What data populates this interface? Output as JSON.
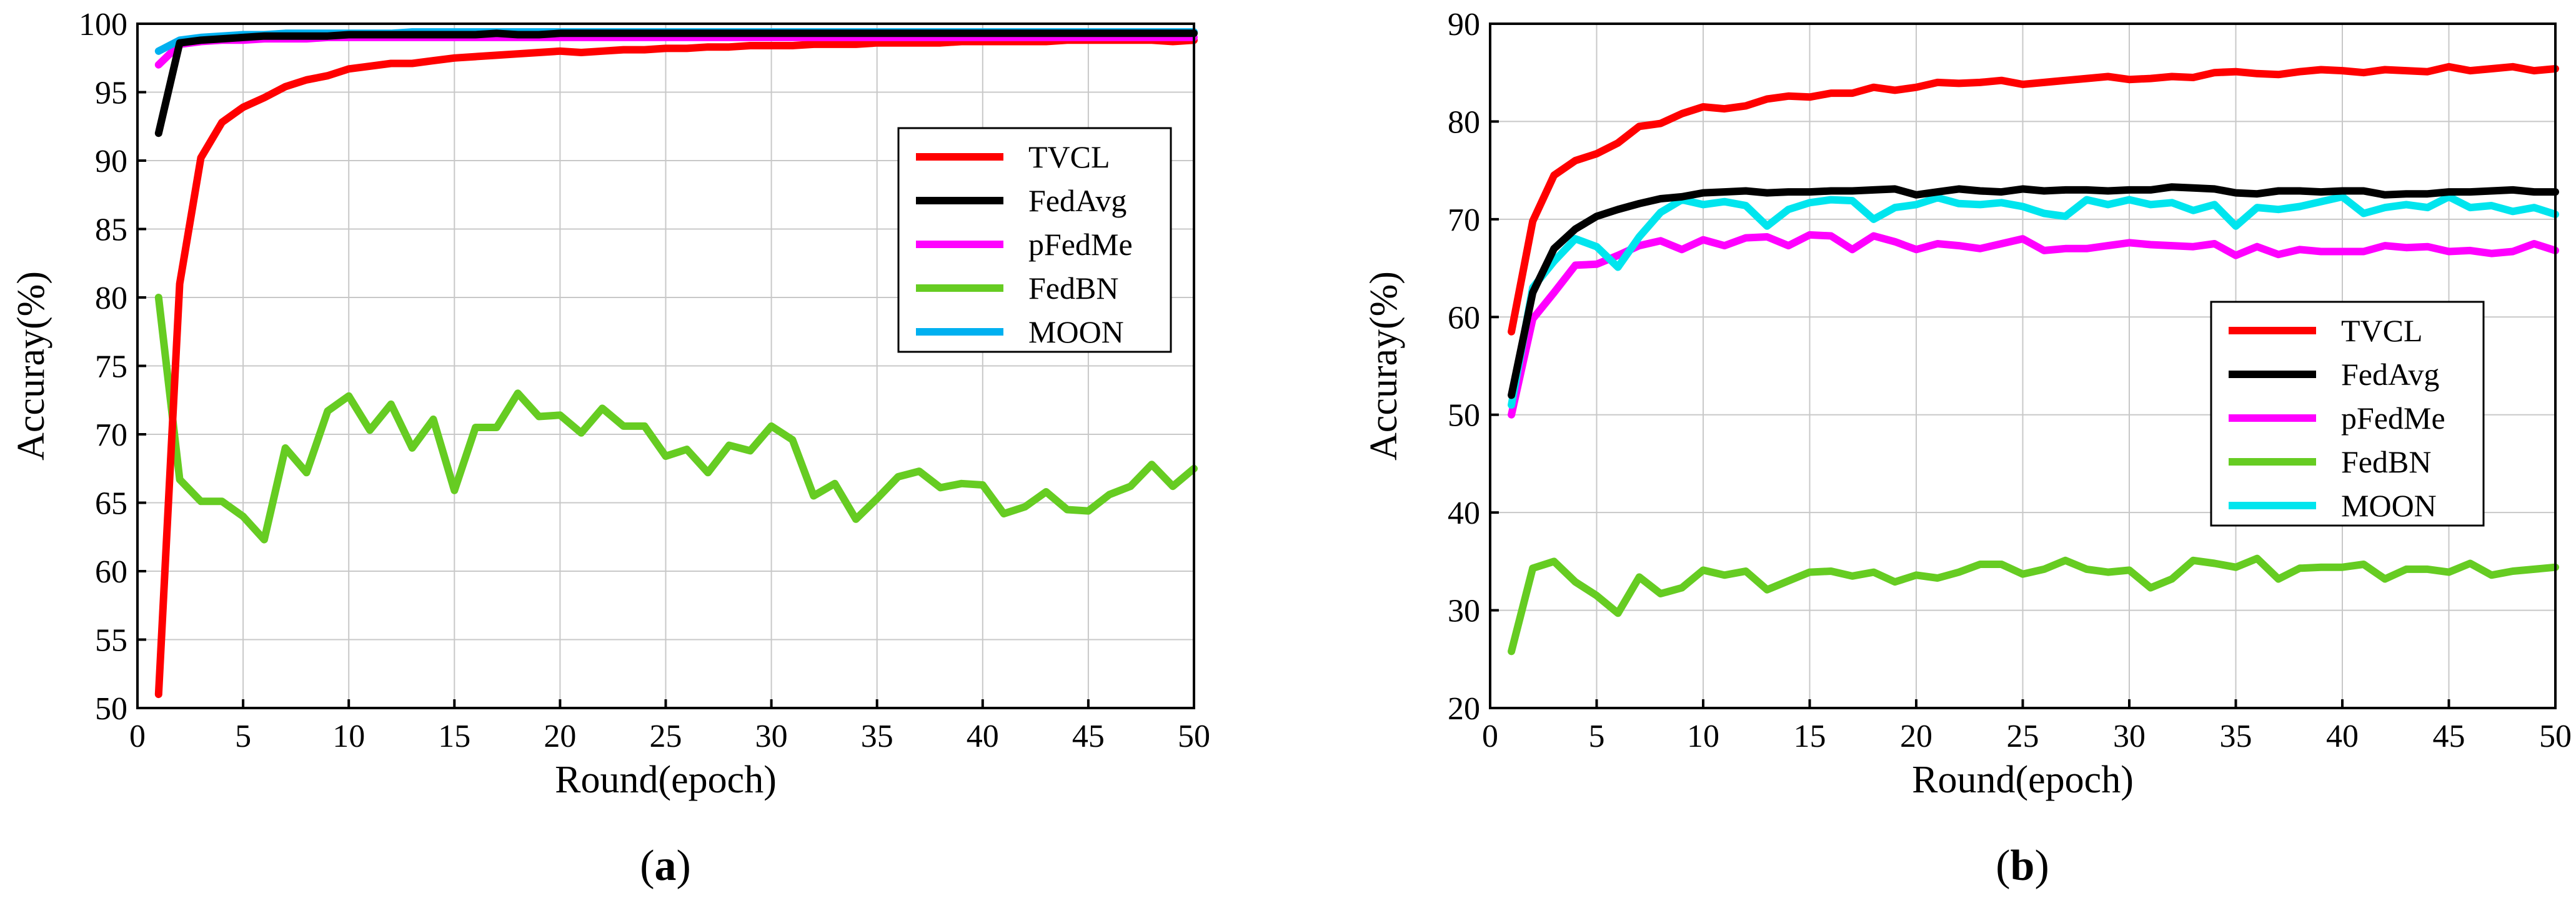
{
  "chart_data": [
    {
      "id": "a",
      "type": "line",
      "caption_open": "(",
      "caption": "a",
      "caption_close": ")",
      "xlabel": "Round(epoch)",
      "ylabel": "Accuray(%)",
      "xlim": [
        0,
        50
      ],
      "ylim": [
        50,
        100
      ],
      "xticks": [
        0,
        5,
        10,
        15,
        20,
        25,
        30,
        35,
        40,
        45,
        50
      ],
      "yticks": [
        50,
        55,
        60,
        65,
        70,
        75,
        80,
        85,
        90,
        95,
        100
      ],
      "grid": true,
      "legend_position": "center-right",
      "x": [
        1,
        2,
        3,
        4,
        5,
        6,
        7,
        8,
        9,
        10,
        11,
        12,
        13,
        14,
        15,
        16,
        17,
        18,
        19,
        20,
        21,
        22,
        23,
        24,
        25,
        26,
        27,
        28,
        29,
        30,
        31,
        32,
        33,
        34,
        35,
        36,
        37,
        38,
        39,
        40,
        41,
        42,
        43,
        44,
        45,
        46,
        47,
        48,
        49,
        50
      ],
      "series": [
        {
          "name": "TVCL",
          "color": "#ff0000",
          "values": [
            51,
            81,
            90.2,
            92.8,
            93.9,
            94.6,
            95.4,
            95.9,
            96.2,
            96.7,
            96.9,
            97.1,
            97.1,
            97.3,
            97.5,
            97.6,
            97.7,
            97.8,
            97.9,
            98.0,
            97.9,
            98.0,
            98.1,
            98.1,
            98.2,
            98.2,
            98.3,
            98.3,
            98.4,
            98.4,
            98.4,
            98.5,
            98.5,
            98.5,
            98.6,
            98.6,
            98.6,
            98.6,
            98.7,
            98.7,
            98.7,
            98.7,
            98.7,
            98.8,
            98.8,
            98.8,
            98.8,
            98.8,
            98.7,
            98.8
          ]
        },
        {
          "name": "FedAvg",
          "color": "#000000",
          "values": [
            92,
            98.6,
            98.8,
            98.9,
            99.0,
            99.1,
            99.1,
            99.1,
            99.1,
            99.2,
            99.2,
            99.2,
            99.2,
            99.2,
            99.2,
            99.2,
            99.3,
            99.2,
            99.2,
            99.3,
            99.3,
            99.3,
            99.3,
            99.3,
            99.3,
            99.3,
            99.3,
            99.3,
            99.3,
            99.3,
            99.3,
            99.3,
            99.3,
            99.3,
            99.3,
            99.3,
            99.3,
            99.3,
            99.3,
            99.3,
            99.3,
            99.3,
            99.3,
            99.3,
            99.3,
            99.3,
            99.3,
            99.3,
            99.3,
            99.3
          ]
        },
        {
          "name": "pFedMe",
          "color": "#ff00ff",
          "values": [
            97,
            98.5,
            98.7,
            98.8,
            98.8,
            98.9,
            98.9,
            98.9,
            99.0,
            99.0,
            99.0,
            99.0,
            99.0,
            99.0,
            99.0,
            99.0,
            99.0,
            99.0,
            99.0,
            99.0,
            99.0,
            99.0,
            99.0,
            99.0,
            99.0,
            99.0,
            99.0,
            99.0,
            99.0,
            99.0,
            99.0,
            99.0,
            99.0,
            99.0,
            99.0,
            99.0,
            99.0,
            99.0,
            99.0,
            99.0,
            99.0,
            99.0,
            99.0,
            99.0,
            99.0,
            99.0,
            99.0,
            99.0,
            99.0,
            99.0
          ]
        },
        {
          "name": "FedBN",
          "color": "#66cc22",
          "values": [
            80,
            66.7,
            65.1,
            65.1,
            64.0,
            62.3,
            69.0,
            67.2,
            71.7,
            72.8,
            70.3,
            72.2,
            69.0,
            71.1,
            65.9,
            70.5,
            70.5,
            73.0,
            71.3,
            71.4,
            70.1,
            71.9,
            70.6,
            70.6,
            68.4,
            68.9,
            67.2,
            69.2,
            68.8,
            70.6,
            69.6,
            65.5,
            66.4,
            63.8,
            65.3,
            66.9,
            67.3,
            66.1,
            66.4,
            66.3,
            64.2,
            64.7,
            65.8,
            64.5,
            64.4,
            65.6,
            66.2,
            67.8,
            66.2,
            67.5
          ]
        },
        {
          "name": "MOON",
          "color": "#00b0f0",
          "values": [
            98,
            98.8,
            99.0,
            99.1,
            99.2,
            99.2,
            99.3,
            99.3,
            99.3,
            99.3,
            99.3,
            99.3,
            99.4,
            99.4,
            99.4,
            99.4,
            99.4,
            99.4,
            99.4,
            99.4,
            99.4,
            99.4,
            99.4,
            99.4,
            99.4,
            99.4,
            99.4,
            99.4,
            99.4,
            99.4,
            99.4,
            99.4,
            99.4,
            99.4,
            99.4,
            99.4,
            99.4,
            99.4,
            99.4,
            99.4,
            99.4,
            99.4,
            99.4,
            99.4,
            99.4,
            99.4,
            99.4,
            99.4,
            99.4,
            99.4
          ]
        }
      ]
    },
    {
      "id": "b",
      "type": "line",
      "caption_open": "(",
      "caption": "b",
      "caption_close": ")",
      "xlabel": "Round(epoch)",
      "ylabel": "Accuray(%)",
      "xlim": [
        0,
        50
      ],
      "ylim": [
        20,
        90
      ],
      "xticks": [
        0,
        5,
        10,
        15,
        20,
        25,
        30,
        35,
        40,
        45,
        50
      ],
      "yticks": [
        20,
        30,
        40,
        50,
        60,
        70,
        80,
        90
      ],
      "grid": true,
      "legend_position": "center-right",
      "x": [
        1,
        2,
        3,
        4,
        5,
        6,
        7,
        8,
        9,
        10,
        11,
        12,
        13,
        14,
        15,
        16,
        17,
        18,
        19,
        20,
        21,
        22,
        23,
        24,
        25,
        26,
        27,
        28,
        29,
        30,
        31,
        32,
        33,
        34,
        35,
        36,
        37,
        38,
        39,
        40,
        41,
        42,
        43,
        44,
        45,
        46,
        47,
        48,
        49,
        50
      ],
      "series": [
        {
          "name": "TVCL",
          "color": "#ff0000",
          "values": [
            58.5,
            69.8,
            74.5,
            76.0,
            76.7,
            77.8,
            79.5,
            79.8,
            80.8,
            81.5,
            81.3,
            81.6,
            82.3,
            82.6,
            82.5,
            82.9,
            82.9,
            83.5,
            83.2,
            83.5,
            84.0,
            83.9,
            84.0,
            84.2,
            83.8,
            84.0,
            84.2,
            84.4,
            84.6,
            84.3,
            84.4,
            84.6,
            84.5,
            85.0,
            85.1,
            84.9,
            84.8,
            85.1,
            85.3,
            85.2,
            85.0,
            85.3,
            85.2,
            85.1,
            85.6,
            85.2,
            85.4,
            85.6,
            85.2,
            85.4
          ]
        },
        {
          "name": "FedAvg",
          "color": "#000000",
          "values": [
            52,
            62.5,
            67,
            69,
            70.3,
            71,
            71.6,
            72.1,
            72.3,
            72.7,
            72.8,
            72.9,
            72.7,
            72.8,
            72.8,
            72.9,
            72.9,
            73.0,
            73.1,
            72.5,
            72.8,
            73.1,
            72.9,
            72.8,
            73.1,
            72.9,
            73.0,
            73.0,
            72.9,
            73.0,
            73.0,
            73.3,
            73.2,
            73.1,
            72.7,
            72.6,
            72.9,
            72.9,
            72.8,
            72.9,
            72.9,
            72.5,
            72.6,
            72.6,
            72.8,
            72.8,
            72.9,
            73.0,
            72.8,
            72.8
          ]
        },
        {
          "name": "pFedMe",
          "color": "#ff00ff",
          "values": [
            50,
            59.8,
            62.5,
            65.3,
            65.4,
            66.3,
            67.3,
            67.8,
            66.9,
            67.9,
            67.3,
            68.1,
            68.2,
            67.3,
            68.4,
            68.3,
            66.9,
            68.3,
            67.7,
            66.9,
            67.5,
            67.3,
            67.0,
            67.5,
            68.0,
            66.8,
            67.0,
            67.0,
            67.3,
            67.6,
            67.4,
            67.3,
            67.2,
            67.5,
            66.3,
            67.2,
            66.4,
            66.9,
            66.7,
            66.7,
            66.7,
            67.3,
            67.1,
            67.2,
            66.7,
            66.8,
            66.5,
            66.7,
            67.5,
            66.8
          ]
        },
        {
          "name": "FedBN",
          "color": "#66cc22",
          "values": [
            25.8,
            34.3,
            35.0,
            32.9,
            31.5,
            29.7,
            33.4,
            31.7,
            32.3,
            34.1,
            33.6,
            34.0,
            32.1,
            33.0,
            33.9,
            34.0,
            33.5,
            33.9,
            32.9,
            33.6,
            33.3,
            33.9,
            34.7,
            34.7,
            33.7,
            34.2,
            35.1,
            34.2,
            33.9,
            34.1,
            32.3,
            33.2,
            35.1,
            34.8,
            34.4,
            35.3,
            33.2,
            34.3,
            34.4,
            34.4,
            34.7,
            33.2,
            34.2,
            34.2,
            33.9,
            34.8,
            33.6,
            34.0,
            34.2,
            34.4
          ]
        },
        {
          "name": "MOON",
          "color": "#00e5ee",
          "values": [
            51,
            63,
            65.7,
            68,
            67.2,
            65.1,
            68.2,
            70.7,
            72,
            71.5,
            71.8,
            71.4,
            69.3,
            71.0,
            71.7,
            72.0,
            71.9,
            70.0,
            71.2,
            71.5,
            72.2,
            71.6,
            71.5,
            71.7,
            71.3,
            70.6,
            70.3,
            72.0,
            71.5,
            72.0,
            71.5,
            71.7,
            70.9,
            71.5,
            69.3,
            71.2,
            71.0,
            71.3,
            71.8,
            72.3,
            70.6,
            71.2,
            71.5,
            71.2,
            72.3,
            71.2,
            71.4,
            70.8,
            71.2,
            70.5
          ]
        }
      ]
    }
  ]
}
